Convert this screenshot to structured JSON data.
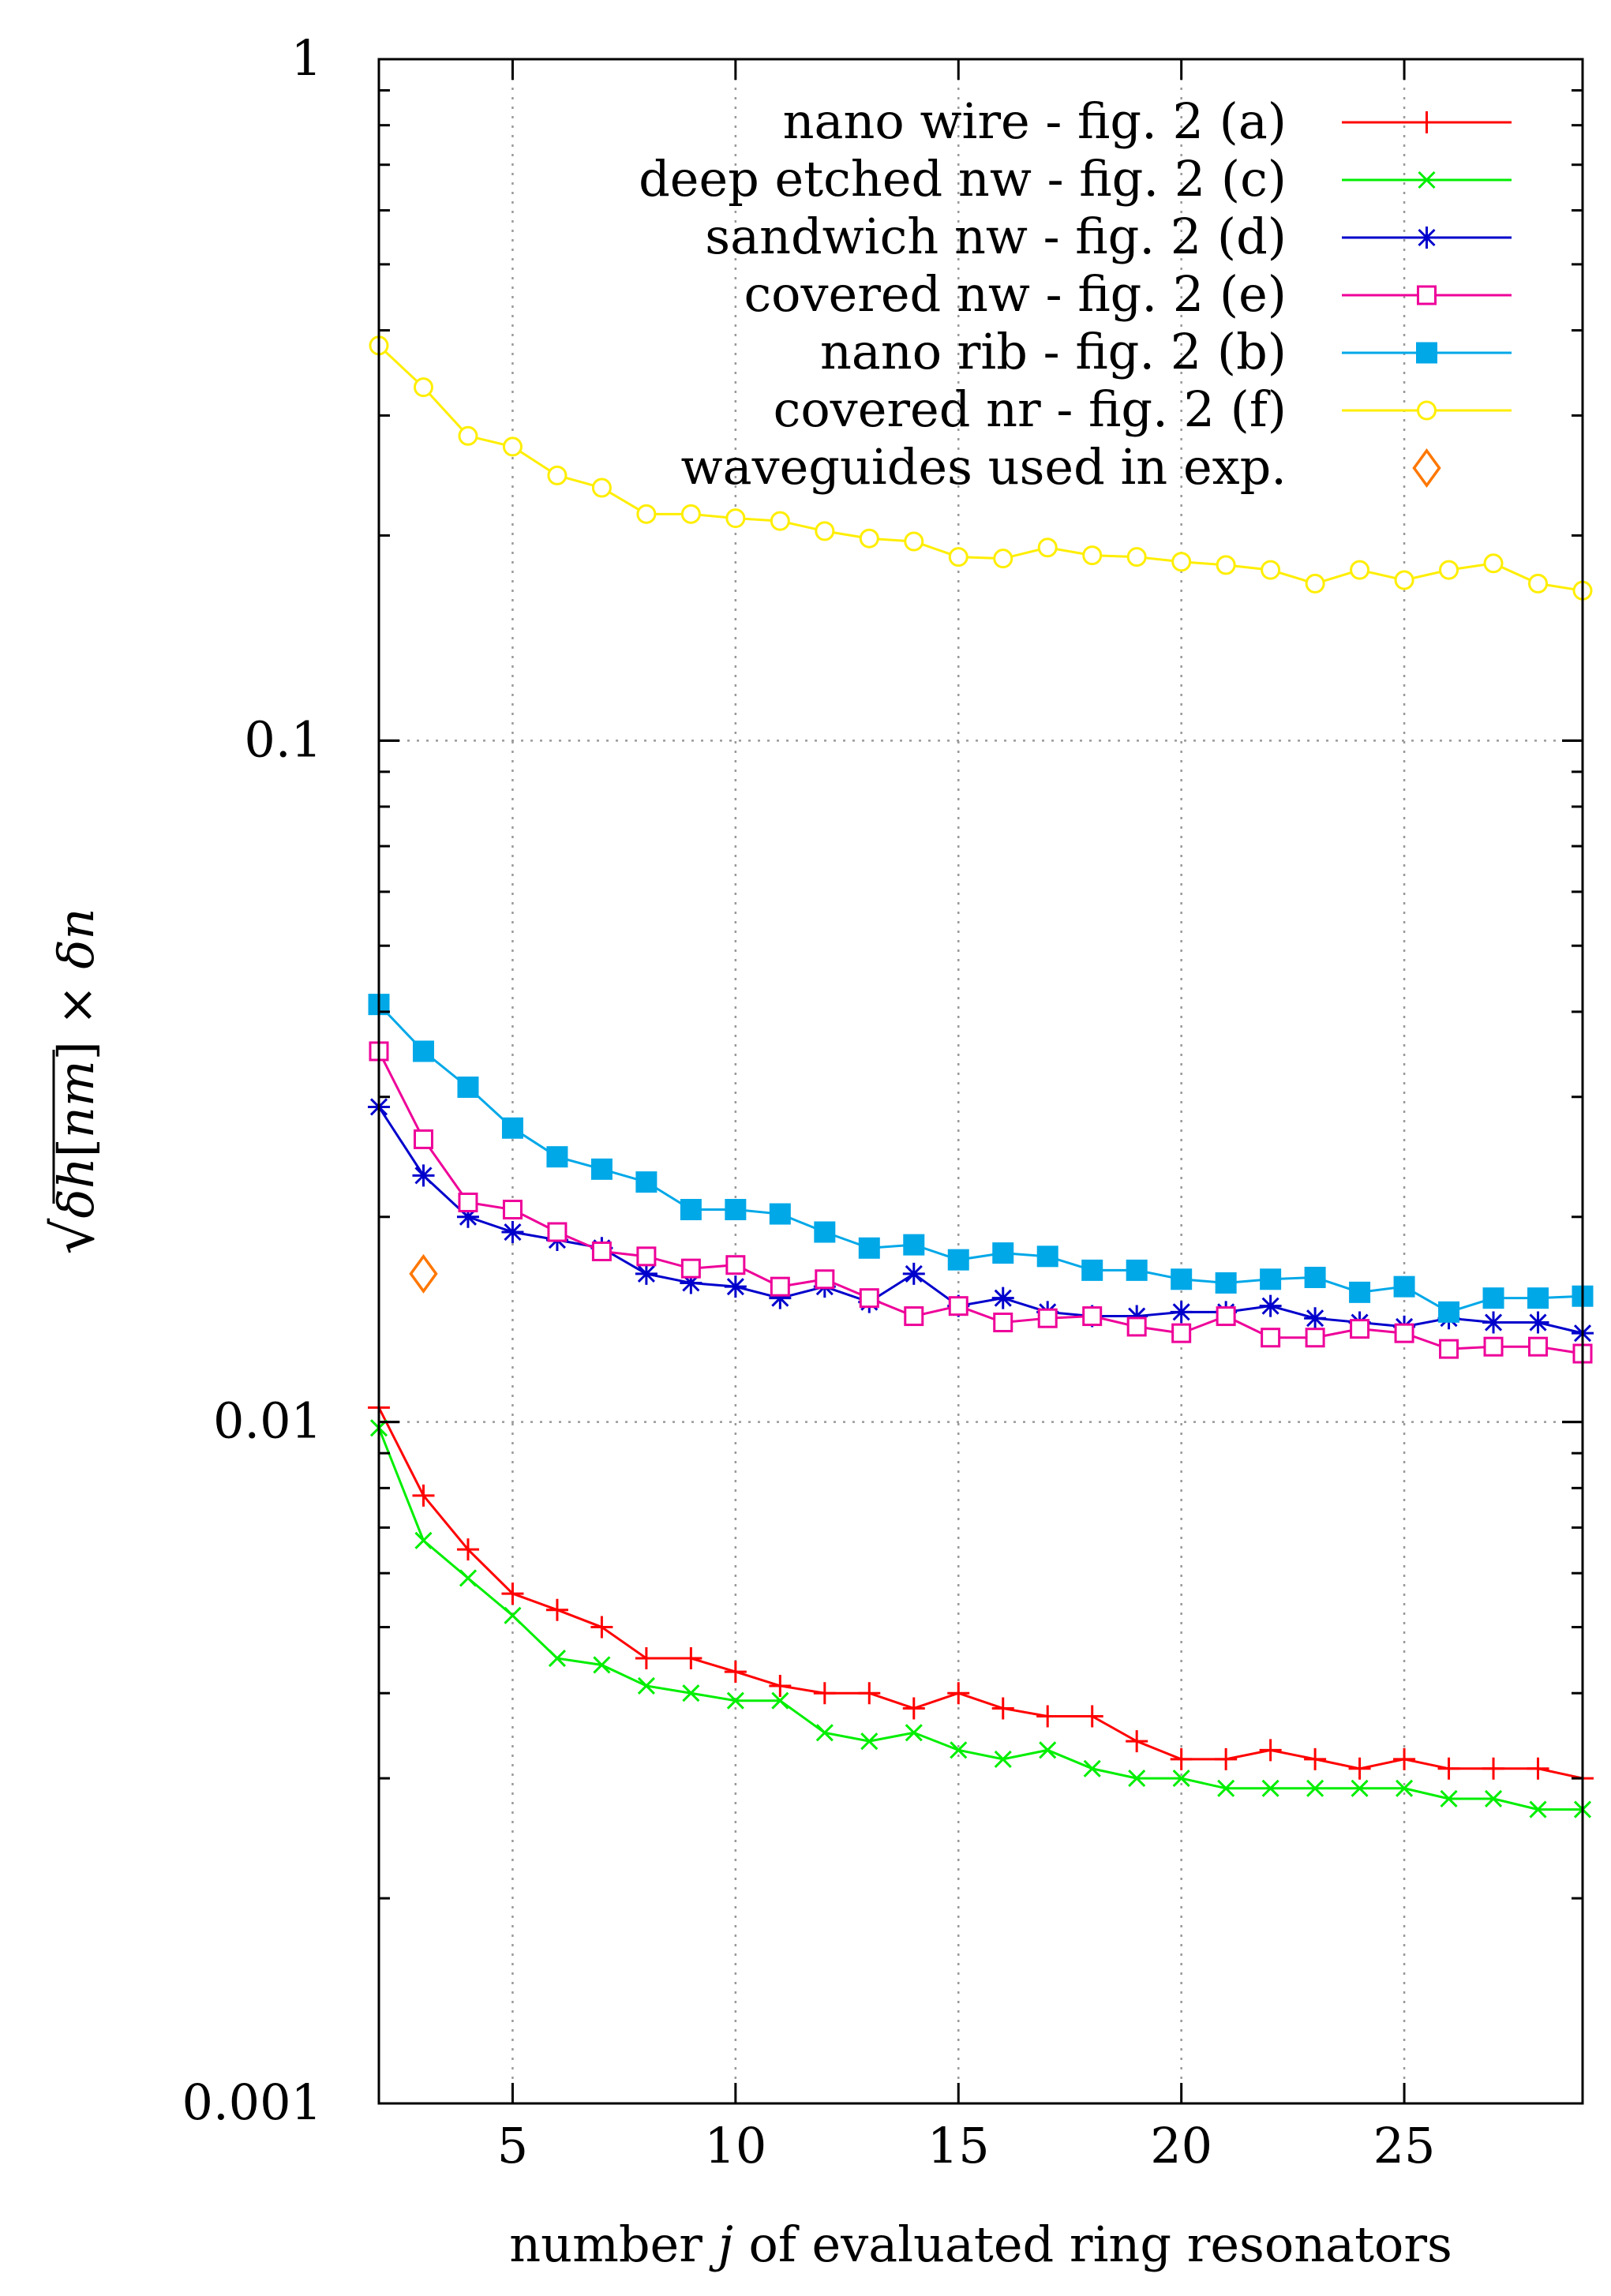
{
  "chart_data": {
    "type": "line",
    "title": "",
    "xlabel": "number j of evaluated ring resonators",
    "xlabel_parts": [
      "number ",
      "j",
      " of evaluated ring resonators"
    ],
    "ylabel": "√(δh[nm]) × δn",
    "ylabel_parts": {
      "sqrt": "√",
      "delta1": "δ",
      "h": "h",
      "open": "[",
      "nm": "nm",
      "close": "]",
      "times": " × ",
      "delta2": "δ",
      "n": "n"
    },
    "yscale": "log",
    "xlim": [
      2,
      29
    ],
    "ylim": [
      0.001,
      1
    ],
    "grid": true,
    "legend_position": "top-right",
    "x_ticks": [
      5,
      10,
      15,
      20,
      25
    ],
    "x_tick_labels": [
      "5",
      "10",
      "15",
      "20",
      "25"
    ],
    "y_ticks": [
      0.001,
      0.01,
      0.1,
      1
    ],
    "y_tick_labels": [
      "0.001",
      "0.01",
      "0.1",
      "1"
    ],
    "x": [
      2,
      3,
      4,
      5,
      6,
      7,
      8,
      9,
      10,
      11,
      12,
      13,
      14,
      15,
      16,
      17,
      18,
      19,
      20,
      21,
      22,
      23,
      24,
      25,
      26,
      27,
      28,
      29
    ],
    "series": [
      {
        "name": "nano wire - fig. 2 (a)",
        "color": "#ff0000",
        "marker": "plus",
        "values": [
          0.0105,
          0.0078,
          0.0065,
          0.0056,
          0.0053,
          0.005,
          0.0045,
          0.0045,
          0.0043,
          0.0041,
          0.004,
          0.004,
          0.0038,
          0.004,
          0.0038,
          0.0037,
          0.0037,
          0.0034,
          0.0032,
          0.0032,
          0.0033,
          0.0032,
          0.0031,
          0.0032,
          0.0031,
          0.0031,
          0.0031,
          0.003
        ]
      },
      {
        "name": "deep etched nw - fig. 2 (c)",
        "color": "#00ee00",
        "marker": "cross",
        "values": [
          0.0098,
          0.0067,
          0.0059,
          0.0052,
          0.0045,
          0.0044,
          0.0041,
          0.004,
          0.0039,
          0.0039,
          0.0035,
          0.0034,
          0.0035,
          0.0033,
          0.0032,
          0.0033,
          0.0031,
          0.003,
          0.003,
          0.0029,
          0.0029,
          0.0029,
          0.0029,
          0.0029,
          0.0028,
          0.0028,
          0.0027,
          0.0027
        ]
      },
      {
        "name": "sandwich nw - fig. 2 (d)",
        "color": "#0000cc",
        "marker": "star",
        "values": [
          0.029,
          0.023,
          0.02,
          0.019,
          0.0185,
          0.018,
          0.0165,
          0.016,
          0.0158,
          0.0152,
          0.0158,
          0.015,
          0.0165,
          0.0148,
          0.0152,
          0.0145,
          0.0143,
          0.0143,
          0.0145,
          0.0145,
          0.0148,
          0.0142,
          0.014,
          0.0138,
          0.0142,
          0.014,
          0.014,
          0.0135
        ]
      },
      {
        "name": "covered nw - fig. 2 (e)",
        "color": "#ee0099",
        "marker": "open-square",
        "values": [
          0.035,
          0.026,
          0.021,
          0.0205,
          0.019,
          0.0178,
          0.0175,
          0.0168,
          0.017,
          0.0158,
          0.0162,
          0.0152,
          0.0143,
          0.0148,
          0.014,
          0.0142,
          0.0143,
          0.0138,
          0.0135,
          0.0143,
          0.0133,
          0.0133,
          0.0137,
          0.0135,
          0.0128,
          0.0129,
          0.0129,
          0.0126
        ]
      },
      {
        "name": "nano rib - fig. 2 (b)",
        "color": "#00a8e8",
        "marker": "filled-square",
        "values": [
          0.041,
          0.035,
          0.031,
          0.027,
          0.0245,
          0.0235,
          0.0225,
          0.0205,
          0.0205,
          0.0202,
          0.019,
          0.018,
          0.0182,
          0.0173,
          0.0177,
          0.0175,
          0.0167,
          0.0167,
          0.0162,
          0.016,
          0.0162,
          0.0163,
          0.0155,
          0.0158,
          0.0145,
          0.0152,
          0.0152,
          0.0153
        ]
      },
      {
        "name": "covered nr - fig. 2 (f)",
        "color": "#ffee00",
        "marker": "open-circle",
        "values": [
          0.38,
          0.33,
          0.28,
          0.27,
          0.245,
          0.235,
          0.215,
          0.215,
          0.212,
          0.21,
          0.203,
          0.198,
          0.196,
          0.186,
          0.185,
          0.192,
          0.187,
          0.186,
          0.183,
          0.181,
          0.178,
          0.17,
          0.178,
          0.172,
          0.178,
          0.182,
          0.17,
          0.166
        ]
      },
      {
        "name": "waveguides used in exp.",
        "color": "#ff7700",
        "marker": "open-diamond",
        "style": "points",
        "points": [
          {
            "x": 3,
            "y": 0.0165
          }
        ]
      }
    ]
  }
}
